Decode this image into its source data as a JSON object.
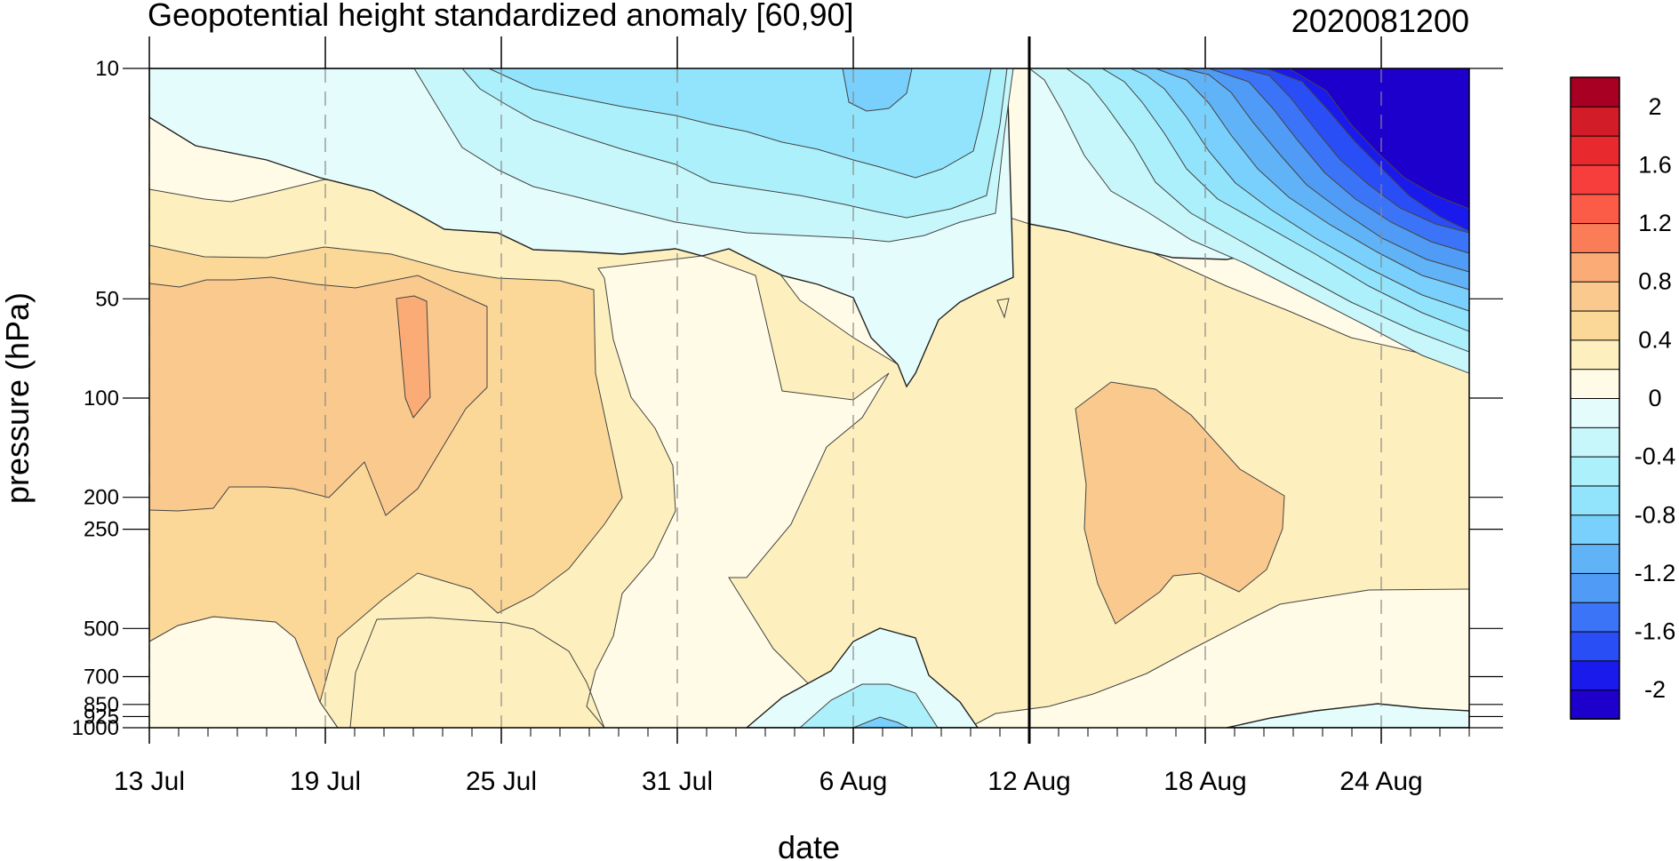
{
  "chart_data": {
    "type": "heatmap",
    "title": "Geopotential height standardized anomaly [60,90]",
    "subtitle": "2020081200",
    "xlabel": "date",
    "ylabel": "pressure (hPa)",
    "y_scale": "log",
    "y_inverted": true,
    "ylim": [
      1000,
      10
    ],
    "xlim": [
      "2020-07-13",
      "2020-08-27"
    ],
    "x_ticks": [
      {
        "date": "2020-07-13",
        "label": "13 Jul"
      },
      {
        "date": "2020-07-19",
        "label": "19 Jul"
      },
      {
        "date": "2020-07-25",
        "label": "25 Jul"
      },
      {
        "date": "2020-07-31",
        "label": "31 Jul"
      },
      {
        "date": "2020-08-06",
        "label": "6 Aug"
      },
      {
        "date": "2020-08-12",
        "label": "12 Aug"
      },
      {
        "date": "2020-08-18",
        "label": "18 Aug"
      },
      {
        "date": "2020-08-24",
        "label": "24 Aug"
      }
    ],
    "y_ticks": [
      {
        "value": 10,
        "label": "10"
      },
      {
        "value": 50,
        "label": "50"
      },
      {
        "value": 100,
        "label": "100"
      },
      {
        "value": 200,
        "label": "200"
      },
      {
        "value": 250,
        "label": "250"
      },
      {
        "value": 500,
        "label": "500"
      },
      {
        "value": 700,
        "label": "700"
      },
      {
        "value": 850,
        "label": "850"
      },
      {
        "value": 925,
        "label": "925"
      },
      {
        "value": 1000,
        "label": "1000"
      }
    ],
    "vertical_reference_line": "2020-08-12",
    "grid": "dashed vertical lines at labeled dates",
    "colorbar": {
      "placement": "right",
      "levels": [
        -2.2,
        -2.0,
        -1.8,
        -1.6,
        -1.4,
        -1.2,
        -1.0,
        -0.8,
        -0.6,
        -0.4,
        -0.2,
        0,
        0.2,
        0.4,
        0.6,
        0.8,
        1.0,
        1.2,
        1.4,
        1.6,
        1.8,
        2.0,
        2.2
      ],
      "colors": [
        "#1e00cc",
        "#1a1aed",
        "#2a4ef5",
        "#3c74f7",
        "#4f9bf5",
        "#61b3f7",
        "#79d0fc",
        "#92e4fc",
        "#abf0fb",
        "#c7f7fa",
        "#e4fcfc",
        "#fffbe6",
        "#fdf0be",
        "#fcd898",
        "#fac98e",
        "#fbab75",
        "#fb7d58",
        "#fb5b47",
        "#f83d3d",
        "#e82a2e",
        "#d21d29",
        "#a80022"
      ],
      "labels": [
        "-2",
        "-1.6",
        "-1.2",
        "-0.8",
        "-0.4",
        "0",
        "0.4",
        "0.8",
        "1.2",
        "1.6",
        "2"
      ],
      "label_values": [
        -2,
        -1.6,
        -1.2,
        -0.8,
        -0.4,
        0,
        0.4,
        0.8,
        1.2,
        1.6,
        2
      ]
    }
  }
}
